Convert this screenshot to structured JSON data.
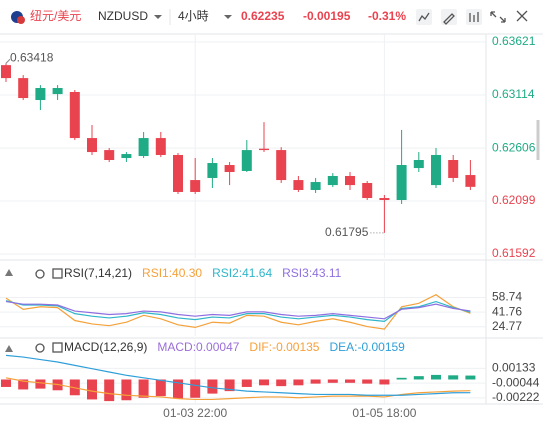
{
  "header": {
    "pair": "纽元/美元",
    "symbol": "NZDUSD",
    "interval": "4小時",
    "price": 0.62235,
    "change": -0.00195,
    "change_pct": "-0.31%"
  },
  "chart_data": [
    {
      "type": "candlestick",
      "categories": [
        null,
        null,
        null,
        null,
        null,
        null,
        null,
        null,
        null,
        null,
        null,
        "01-03 22:00",
        null,
        null,
        null,
        null,
        null,
        null,
        null,
        null,
        null,
        null,
        "01-05 18:00",
        null,
        null,
        null,
        null,
        null
      ],
      "open": [
        0.634,
        0.63276,
        0.63066,
        0.63123,
        0.63143,
        0.62702,
        0.62587,
        0.62511,
        0.6253,
        0.62702,
        0.6254,
        0.623,
        0.6232,
        0.62444,
        0.62387,
        0.626,
        0.62587,
        0.623,
        0.62205,
        0.62252,
        0.62339,
        0.62272,
        0.62128,
        0.62109,
        0.62415,
        0.62252,
        0.62492,
        0.62348
      ],
      "high": [
        0.63418,
        0.63305,
        0.63209,
        0.63209,
        0.63162,
        0.62827,
        0.62607,
        0.62568,
        0.6276,
        0.6276,
        0.62559,
        0.62511,
        0.62511,
        0.62473,
        0.62683,
        0.62855,
        0.62615,
        0.62339,
        0.6232,
        0.62367,
        0.62377,
        0.62291,
        0.62157,
        0.6278,
        0.62568,
        0.62607,
        0.6254,
        0.62492
      ],
      "low": [
        0.63238,
        0.63066,
        0.6297,
        0.63066,
        0.62683,
        0.6254,
        0.62473,
        0.62473,
        0.62511,
        0.6252,
        0.62167,
        0.62167,
        0.62224,
        0.62252,
        0.62377,
        0.62568,
        0.62272,
        0.62186,
        0.62176,
        0.62233,
        0.62205,
        0.62109,
        0.61795,
        0.62071,
        0.62377,
        0.62224,
        0.62281,
        0.62205
      ],
      "close": [
        0.63276,
        0.63085,
        0.63181,
        0.63181,
        0.62702,
        0.62568,
        0.62492,
        0.62549,
        0.62702,
        0.6254,
        0.62186,
        0.62186,
        0.62463,
        0.62377,
        0.62587,
        0.62587,
        0.623,
        0.62205,
        0.62281,
        0.62339,
        0.62252,
        0.62128,
        0.62109,
        0.62444,
        0.62492,
        0.6254,
        0.6232,
        0.62235
      ],
      "up_color": "#1fab85",
      "down_color": "#e9434f",
      "ylim": [
        0.61554,
        0.63698
      ],
      "yticks": [
        0.63621,
        0.63114,
        0.62606,
        0.62099,
        0.61592
      ]
    },
    {
      "type": "line",
      "title": "RSI(7,14,21)",
      "series": [
        {
          "name": "RSI1:40.30",
          "color": "#f5a13a",
          "values": [
            58,
            45,
            48,
            47,
            32,
            28,
            26,
            30,
            38,
            34,
            27,
            24,
            30,
            29,
            38,
            37,
            30,
            27,
            31,
            34,
            30,
            25,
            22,
            48,
            52,
            62,
            48,
            40.3
          ]
        },
        {
          "name": "RSI2:41.64",
          "color": "#2fb6c9",
          "values": [
            55,
            50,
            50,
            49,
            40,
            37,
            35,
            37,
            41,
            39,
            35,
            33,
            36,
            35,
            40,
            40,
            36,
            34,
            36,
            38,
            36,
            33,
            31,
            46,
            48,
            54,
            47,
            41.64
          ]
        },
        {
          "name": "RSI3:43.11",
          "color": "#8f6fe0",
          "values": [
            54,
            51,
            51,
            50,
            43,
            41,
            39,
            40,
            43,
            42,
            39,
            37,
            39,
            38,
            42,
            42,
            39,
            37,
            38,
            40,
            38,
            36,
            34,
            45,
            47,
            51,
            46,
            43.11
          ]
        }
      ],
      "ylim": [
        14,
        100
      ],
      "yticks": [
        58.74,
        41.76,
        24.77
      ]
    },
    {
      "type": "macd",
      "title": "MACD(12,26,9)",
      "series": [
        {
          "name": "MACD:0.00047",
          "color": "#9b6fd6",
          "up_color": "#1fab85",
          "down_color": "#e9434f",
          "values": [
            -0.0009,
            -0.0012,
            -0.0011,
            -0.0013,
            -0.0019,
            -0.0024,
            -0.0026,
            -0.0025,
            -0.0022,
            -0.002,
            -0.0023,
            -0.0022,
            -0.0017,
            -0.0014,
            -0.0009,
            -0.0007,
            -0.0008,
            -0.0007,
            -0.0005,
            -0.0004,
            -0.0004,
            -0.0005,
            -0.0006,
            0.0002,
            0.0004,
            0.00055,
            0.0005,
            0.00047
          ]
        },
        {
          "name": "DIF:-0.00135",
          "color": "#f5a13a",
          "values": [
            0.0002,
            -0.0002,
            -0.0004,
            -0.0006,
            -0.001,
            -0.0014,
            -0.0017,
            -0.0019,
            -0.002,
            -0.0021,
            -0.0023,
            -0.0024,
            -0.0024,
            -0.0023,
            -0.0022,
            -0.0021,
            -0.0021,
            -0.0022,
            -0.0021,
            -0.002,
            -0.002,
            -0.002,
            -0.0021,
            -0.0018,
            -0.0016,
            -0.0015,
            -0.0014,
            -0.00135
          ]
        },
        {
          "name": "DEA:-0.00159",
          "color": "#2f9fd9",
          "values": [
            0.0029,
            0.0027,
            0.0024,
            0.0021,
            0.0017,
            0.0013,
            0.0009,
            0.0005,
            0.0002,
            -0.0001,
            -0.0004,
            -0.0007,
            -0.001,
            -0.0012,
            -0.0014,
            -0.0015,
            -0.0016,
            -0.0017,
            -0.0018,
            -0.0018,
            -0.0018,
            -0.0019,
            -0.0019,
            -0.0019,
            -0.0018,
            -0.0017,
            -0.0016,
            -0.00159
          ]
        }
      ],
      "ylim": [
        -0.00295,
        0.00475
      ],
      "yticks": [
        0.00133,
        -0.00044,
        -0.00222
      ]
    }
  ]
}
